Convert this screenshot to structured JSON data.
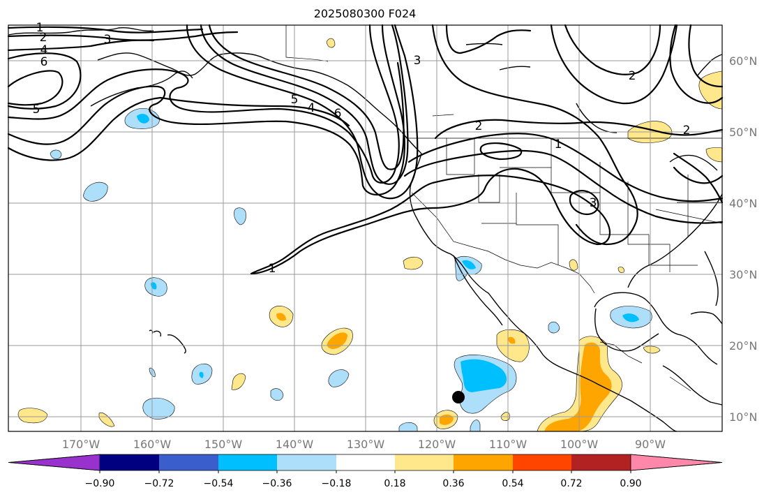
{
  "title": "2025080300 F024",
  "lat_labels": [
    "60°N",
    "50°N",
    "40°N",
    "30°N",
    "20°N",
    "10°N"
  ],
  "lon_labels": [
    "170°W",
    "160°W",
    "150°W",
    "140°W",
    "130°W",
    "120°W",
    "110°W",
    "100°W",
    "90°W"
  ],
  "colorbar": {
    "tick_labels": [
      "−0.90",
      "−0.72",
      "−0.54",
      "−0.36",
      "−0.18",
      "0.18",
      "0.36",
      "0.54",
      "0.72",
      "0.90"
    ],
    "colors": [
      "#9932CC",
      "#000080",
      "#3A5FCD",
      "#00BFFF",
      "#AEDFFA",
      "#FFFFFF",
      "#FFE78C",
      "#FFA500",
      "#FF4500",
      "#B22222",
      "#FF88AA"
    ]
  },
  "contour_labels": [
    "1",
    "2",
    "3",
    "4",
    "6",
    "5",
    "5",
    "4",
    "6",
    "3",
    "2",
    "1",
    "3",
    "2",
    "2",
    "1"
  ],
  "shading_colors": {
    "light_blue": "#AEDFFA",
    "blue": "#00BFFF",
    "light_yellow": "#FFE78C",
    "orange": "#FFA500"
  },
  "marker": "black-dot"
}
